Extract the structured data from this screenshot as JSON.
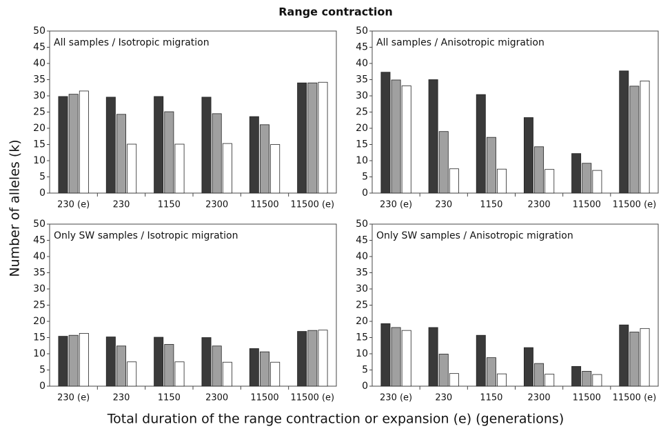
{
  "title": "Range contraction",
  "ylabel": "Number of alleles (k)",
  "xlabel": "Total duration of the range contraction or expansion (e)  (generations)",
  "chart_data": [
    {
      "type": "bar",
      "title": "All samples / Isotropic migration",
      "categories": [
        "230 (e)",
        "230",
        "1150",
        "2300",
        "11500",
        "11500 (e)"
      ],
      "series": [
        {
          "color": "#3a3a3a",
          "values": [
            29.8,
            29.6,
            29.8,
            29.6,
            23.6,
            34.0
          ]
        },
        {
          "color": "#a0a0a0",
          "values": [
            30.5,
            24.3,
            25.1,
            24.5,
            21.1,
            34.0
          ]
        },
        {
          "color": "#ffffff",
          "values": [
            31.5,
            15.1,
            15.1,
            15.3,
            15.0,
            34.2
          ]
        }
      ],
      "ylim": [
        0,
        50
      ],
      "yticks": [
        0,
        5,
        10,
        15,
        20,
        25,
        30,
        35,
        40,
        45,
        50
      ]
    },
    {
      "type": "bar",
      "title": "All samples / Anisotropic migration",
      "categories": [
        "230 (e)",
        "230",
        "1150",
        "2300",
        "11500",
        "11500 (e)"
      ],
      "series": [
        {
          "color": "#3a3a3a",
          "values": [
            37.3,
            35.0,
            30.4,
            23.3,
            12.2,
            37.7
          ]
        },
        {
          "color": "#a0a0a0",
          "values": [
            34.9,
            19.0,
            17.2,
            14.3,
            9.2,
            33.0
          ]
        },
        {
          "color": "#ffffff",
          "values": [
            33.1,
            7.5,
            7.4,
            7.3,
            7.0,
            34.6
          ]
        }
      ],
      "ylim": [
        0,
        50
      ],
      "yticks": [
        0,
        5,
        10,
        15,
        20,
        25,
        30,
        35,
        40,
        45,
        50
      ]
    },
    {
      "type": "bar",
      "title": "Only SW samples / Isotropic migration",
      "categories": [
        "230 (e)",
        "230",
        "1150",
        "2300",
        "11500",
        "11500 (e)"
      ],
      "series": [
        {
          "color": "#3a3a3a",
          "values": [
            15.4,
            15.2,
            15.1,
            15.0,
            11.6,
            16.9
          ]
        },
        {
          "color": "#a0a0a0",
          "values": [
            15.7,
            12.4,
            12.9,
            12.4,
            10.6,
            17.2
          ]
        },
        {
          "color": "#ffffff",
          "values": [
            16.3,
            7.5,
            7.5,
            7.4,
            7.4,
            17.3
          ]
        }
      ],
      "ylim": [
        0,
        50
      ],
      "yticks": [
        0,
        5,
        10,
        15,
        20,
        25,
        30,
        35,
        40,
        45,
        50
      ]
    },
    {
      "type": "bar",
      "title": "Only SW samples / Anisotropic migration",
      "categories": [
        "230 (e)",
        "230",
        "1150",
        "2300",
        "11500",
        "11500 (e)"
      ],
      "series": [
        {
          "color": "#3a3a3a",
          "values": [
            19.3,
            18.1,
            15.7,
            11.9,
            6.1,
            18.9
          ]
        },
        {
          "color": "#a0a0a0",
          "values": [
            18.1,
            9.9,
            8.8,
            7.0,
            4.6,
            16.7
          ]
        },
        {
          "color": "#ffffff",
          "values": [
            17.2,
            3.9,
            3.8,
            3.7,
            3.6,
            17.8
          ]
        }
      ],
      "ylim": [
        0,
        50
      ],
      "yticks": [
        0,
        5,
        10,
        15,
        20,
        25,
        30,
        35,
        40,
        45,
        50
      ]
    }
  ]
}
